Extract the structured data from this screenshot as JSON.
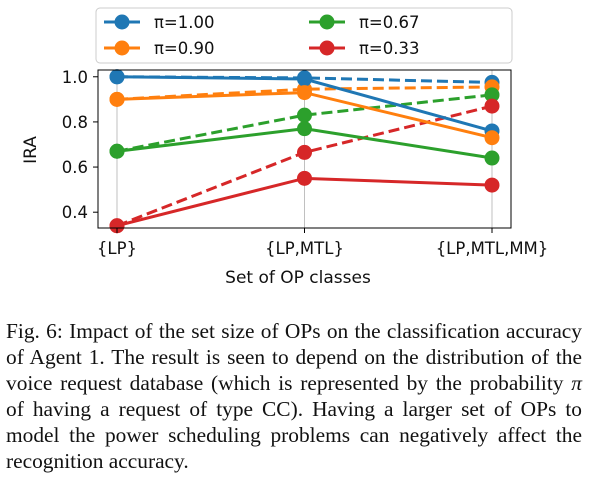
{
  "chart_data": {
    "type": "line",
    "title": "",
    "xlabel": "Set of OP classes",
    "ylabel": "IRA",
    "categories": [
      "{LP}",
      "{LP,MTL}",
      "{LP,MTL,MM}"
    ],
    "ylim": [
      0.33,
      1.03
    ],
    "yticks": [
      "0.4",
      "0.6",
      "0.8",
      "1.0"
    ],
    "ytick_values": [
      0.4,
      0.6,
      0.8,
      1.0
    ],
    "grid": "vertical",
    "legend_placement": "above plot, two columns",
    "series": [
      {
        "name": "π=1.00",
        "color": "#1f77b4",
        "style": "solid",
        "values": [
          1.0,
          0.99,
          0.76
        ]
      },
      {
        "name": "π=0.90",
        "color": "#ff7f0e",
        "style": "solid",
        "values": [
          0.9,
          0.93,
          0.73
        ]
      },
      {
        "name": "π=0.67",
        "color": "#2ca02c",
        "style": "solid",
        "values": [
          0.67,
          0.77,
          0.64
        ]
      },
      {
        "name": "π=0.33",
        "color": "#d62728",
        "style": "solid",
        "values": [
          0.34,
          0.55,
          0.52
        ]
      }
    ],
    "dashed_series": [
      {
        "color": "#1f77b4",
        "values": [
          1.0,
          0.995,
          0.975
        ]
      },
      {
        "color": "#ff7f0e",
        "values": [
          0.9,
          0.945,
          0.955
        ]
      },
      {
        "color": "#2ca02c",
        "values": [
          0.67,
          0.83,
          0.92
        ]
      },
      {
        "color": "#d62728",
        "values": [
          0.34,
          0.665,
          0.87
        ]
      }
    ]
  },
  "caption": {
    "label": "Fig. 6:",
    "text_before_pi": " Impact of the set size of OPs on the classification accuracy of Agent 1. The result is seen to depend on the distribution of the voice request database (which is represented by the probability ",
    "pi_symbol": "π",
    "text_after_pi": " of having a request of type CC). Having a larger set of OPs to model the power scheduling problems can negatively affect the recognition accuracy."
  }
}
